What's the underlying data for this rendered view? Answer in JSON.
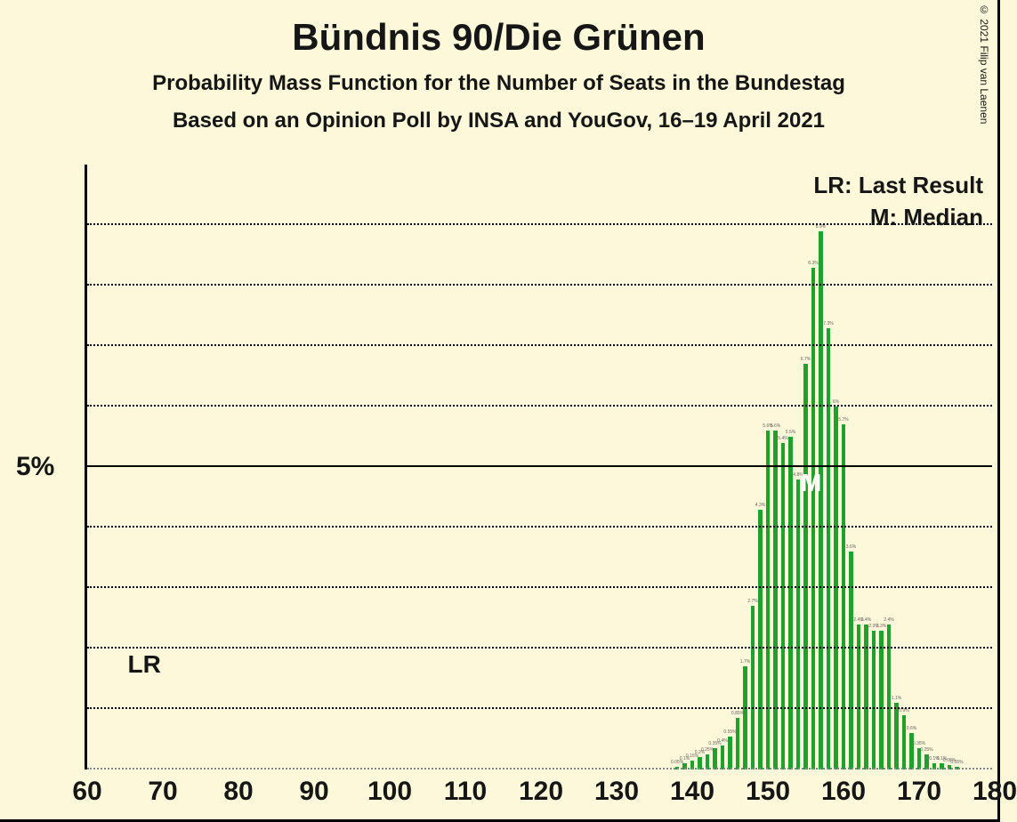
{
  "title": "Bündnis 90/Die Grünen",
  "subtitle": "Probability Mass Function for the Number of Seats in the Bundestag",
  "subtitle2": "Based on an Opinion Poll by INSA and YouGov, 16–19 April 2021",
  "copyright": "© 2021 Filip van Laenen",
  "chart": {
    "type": "bar",
    "background_color": "#fdf8d9",
    "bar_color": "#1fa12e",
    "grid_dotted_color": "#000000",
    "grid_solid_color": "#000000",
    "axis_color": "#000000",
    "text_color": "#161616",
    "x_min": 60,
    "x_max": 180,
    "x_tick_step": 10,
    "y_min": 0,
    "y_max": 10,
    "y_major_tick": 5,
    "y_minor_step": 1,
    "y_label": "5%",
    "bar_width_ratio": 0.55,
    "title_fontsize": 42,
    "subtitle_fontsize": 24,
    "axis_label_fontsize": 30,
    "legend_fontsize": 26,
    "median_seat": 156,
    "last_result_seat": 67,
    "legend_lr": "LR: Last Result",
    "legend_m": "M: Median",
    "lr_short": "LR",
    "m_short": "M",
    "x_ticks": [
      60,
      70,
      80,
      90,
      100,
      110,
      120,
      130,
      140,
      150,
      160,
      170,
      180
    ],
    "bars": [
      {
        "seat": 138,
        "pct": 0.05
      },
      {
        "seat": 139,
        "pct": 0.1
      },
      {
        "seat": 140,
        "pct": 0.15
      },
      {
        "seat": 141,
        "pct": 0.2
      },
      {
        "seat": 142,
        "pct": 0.25
      },
      {
        "seat": 143,
        "pct": 0.35
      },
      {
        "seat": 144,
        "pct": 0.4
      },
      {
        "seat": 145,
        "pct": 0.55
      },
      {
        "seat": 146,
        "pct": 0.85
      },
      {
        "seat": 147,
        "pct": 1.7
      },
      {
        "seat": 148,
        "pct": 2.7
      },
      {
        "seat": 149,
        "pct": 4.3
      },
      {
        "seat": 150,
        "pct": 5.6
      },
      {
        "seat": 151,
        "pct": 5.6
      },
      {
        "seat": 152,
        "pct": 5.4
      },
      {
        "seat": 153,
        "pct": 5.5
      },
      {
        "seat": 154,
        "pct": 4.8
      },
      {
        "seat": 155,
        "pct": 6.7
      },
      {
        "seat": 156,
        "pct": 8.3
      },
      {
        "seat": 157,
        "pct": 8.9
      },
      {
        "seat": 158,
        "pct": 7.3
      },
      {
        "seat": 159,
        "pct": 6.0
      },
      {
        "seat": 160,
        "pct": 5.7
      },
      {
        "seat": 161,
        "pct": 3.6
      },
      {
        "seat": 162,
        "pct": 2.4
      },
      {
        "seat": 163,
        "pct": 2.4
      },
      {
        "seat": 164,
        "pct": 2.3
      },
      {
        "seat": 165,
        "pct": 2.3
      },
      {
        "seat": 166,
        "pct": 2.4
      },
      {
        "seat": 167,
        "pct": 1.1
      },
      {
        "seat": 168,
        "pct": 0.9
      },
      {
        "seat": 169,
        "pct": 0.6
      },
      {
        "seat": 170,
        "pct": 0.35
      },
      {
        "seat": 171,
        "pct": 0.25
      },
      {
        "seat": 172,
        "pct": 0.1
      },
      {
        "seat": 173,
        "pct": 0.1
      },
      {
        "seat": 174,
        "pct": 0.08
      },
      {
        "seat": 175,
        "pct": 0.05
      }
    ]
  }
}
